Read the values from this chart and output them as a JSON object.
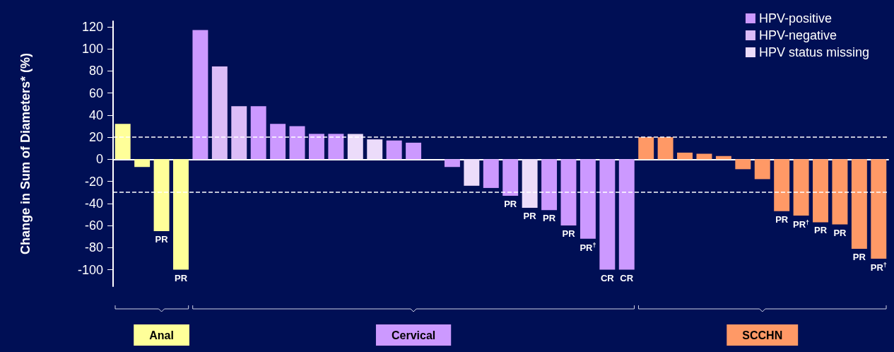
{
  "chart_data": {
    "type": "bar",
    "ylabel": "Change in Sum of Diameters* (%)",
    "categories": [
      null,
      null,
      "Anal",
      null,
      null,
      null,
      null,
      null,
      null,
      null,
      null,
      null,
      null,
      null,
      null,
      "Cervical",
      null,
      null,
      null,
      null,
      null,
      null,
      null,
      null,
      null,
      null,
      null,
      null,
      null,
      null,
      null,
      null,
      null,
      "SCCHN",
      null,
      null,
      null,
      null,
      null,
      null
    ],
    "series": [
      {
        "name": "HPV-positive",
        "color": "#cc99ff",
        "colors": [
          "#ffff99",
          "#ffff99",
          "#ffff99",
          "#ffff99",
          "#cc99ff",
          "#cc99ff",
          "#cc99ff",
          "#cc99ff",
          "#cc99ff",
          "#cc99ff",
          "#cc99ff",
          "#cc99ff",
          "#cc99ff",
          "#cc99ff",
          "#cc99ff",
          "#cc99ff",
          "#cc99ff",
          "#cc99ff",
          "#cc99ff",
          "#cc99ff",
          "#cc99ff",
          "#cc99ff",
          "#cc99ff",
          "#cc99ff",
          "#cc99ff",
          "#cc99ff",
          "#cc99ff",
          "#ff9966",
          "#ff9966",
          "#ff9966",
          "#ff9966",
          "#ff9966",
          "#ff9966",
          "#ff9966",
          "#ff9966",
          "#ff9966",
          "#ff9966",
          "#ff9966",
          "#ff9966",
          "#ff9966"
        ],
        "values": [
          32,
          -7,
          -65,
          -100,
          117,
          null,
          null,
          48,
          32,
          30,
          23,
          23,
          null,
          null,
          17,
          15,
          0,
          -7,
          null,
          -26,
          -33,
          null,
          -46,
          -60,
          -72,
          -100,
          -100,
          20,
          20,
          6,
          5,
          3,
          -9,
          -18,
          -47,
          -51,
          -57,
          -59,
          -81,
          -90
        ],
        "value_labels": [
          null,
          null,
          "PR",
          "PR",
          null,
          null,
          null,
          null,
          null,
          null,
          null,
          null,
          null,
          null,
          null,
          null,
          null,
          null,
          null,
          null,
          "PR",
          null,
          "PR",
          "PR",
          "PR$^{†}$",
          "CR",
          "CR",
          null,
          null,
          null,
          null,
          null,
          null,
          null,
          "PR",
          "PR$^{†}$",
          "PR",
          "PR",
          "PR",
          "PR$^{†}$"
        ]
      },
      {
        "name": "HPV-negative",
        "color": "#dcbcf7",
        "values": [
          null,
          null,
          null,
          null,
          null,
          84,
          48,
          null,
          null,
          null,
          null,
          null,
          null,
          null,
          null,
          null,
          null,
          null,
          null,
          null,
          null,
          null,
          null,
          null,
          null,
          null,
          null,
          null,
          null,
          null,
          null,
          null,
          null,
          null,
          null,
          null,
          null,
          null,
          null,
          null
        ]
      },
      {
        "name": "HPV status missing",
        "color": "#ecdcfa",
        "values": [
          null,
          null,
          null,
          null,
          null,
          null,
          null,
          null,
          null,
          null,
          null,
          null,
          23,
          18,
          null,
          null,
          null,
          null,
          -24,
          null,
          null,
          -44,
          null,
          null,
          null,
          null,
          null,
          null,
          null,
          null,
          null,
          null,
          null,
          null,
          null,
          null,
          null,
          null,
          null,
          null
        ],
        "value_labels": [
          null,
          null,
          null,
          null,
          null,
          null,
          null,
          null,
          null,
          null,
          null,
          null,
          null,
          null,
          null,
          null,
          null,
          null,
          null,
          null,
          null,
          "PR",
          null,
          null,
          null,
          null,
          null,
          null,
          null,
          null,
          null,
          null,
          null,
          null,
          null,
          null,
          null,
          null,
          null,
          null
        ]
      }
    ],
    "ylim": [
      -115,
      125
    ],
    "yticks": [
      -100,
      -80,
      -60,
      -40,
      -20,
      0,
      20,
      40,
      60,
      80,
      100,
      120
    ],
    "ref_lines": [
      {
        "axis": "y",
        "value": 20,
        "color": "#ffffff",
        "line_style": "dashed"
      },
      {
        "axis": "y",
        "value": -30,
        "color": "#ffffff",
        "line_style": "dashed"
      }
    ],
    "legend": "top right"
  }
}
